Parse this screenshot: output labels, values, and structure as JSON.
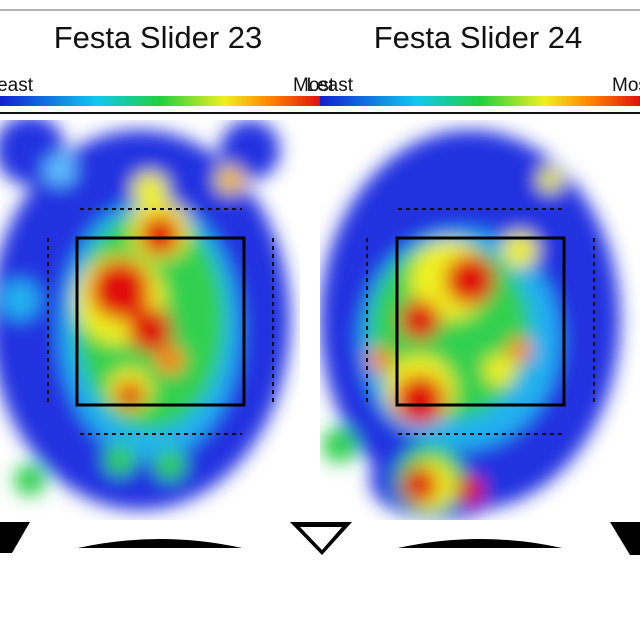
{
  "panels": [
    {
      "title": "Festa Slider 23",
      "legend_low": "Least",
      "legend_high": "Most"
    },
    {
      "title": "Festa Slider 24",
      "legend_low": "Least",
      "legend_high": "Most"
    }
  ]
}
